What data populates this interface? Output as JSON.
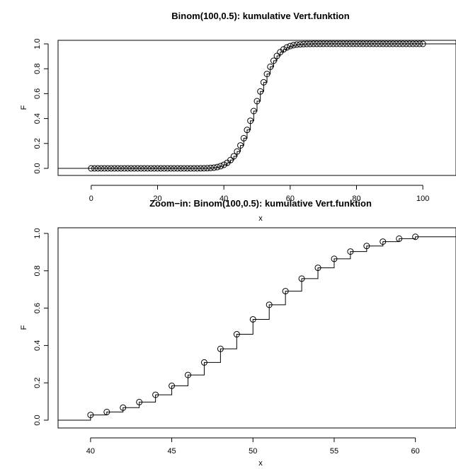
{
  "chart_data": [
    {
      "type": "scatter",
      "title": "Binom(100,0.5): kumulative Vert.funktion",
      "xlabel": "x",
      "ylabel": "F",
      "xlim": [
        -10,
        110
      ],
      "ylim": [
        0,
        1
      ],
      "xticks": [
        0,
        20,
        40,
        60,
        80,
        100
      ],
      "yticks": [
        "0.0",
        "0.2",
        "0.4",
        "0.6",
        "0.8",
        "1.0"
      ],
      "step_line": true,
      "x_range": [
        0,
        100
      ],
      "distribution": "Binomial(n=100, p=0.5) cumulative distribution function"
    },
    {
      "type": "scatter",
      "title": "Zoom−in: Binom(100,0.5): kumulative Vert.funktion",
      "xlabel": "x",
      "ylabel": "F",
      "xlim": [
        38,
        62.5
      ],
      "ylim": [
        0,
        1
      ],
      "xticks": [
        40,
        45,
        50,
        55,
        60
      ],
      "yticks": [
        "0.0",
        "0.2",
        "0.4",
        "0.6",
        "0.8",
        "1.0"
      ],
      "step_line": true,
      "x": [
        40,
        41,
        42,
        43,
        44,
        45,
        46,
        47,
        48,
        49,
        50,
        51,
        52,
        53,
        54,
        55,
        56,
        57,
        58,
        59,
        60
      ],
      "y": [
        0.028,
        0.044,
        0.067,
        0.097,
        0.136,
        0.184,
        0.242,
        0.309,
        0.382,
        0.46,
        0.54,
        0.618,
        0.691,
        0.758,
        0.816,
        0.864,
        0.903,
        0.933,
        0.956,
        0.972,
        0.982
      ]
    }
  ]
}
